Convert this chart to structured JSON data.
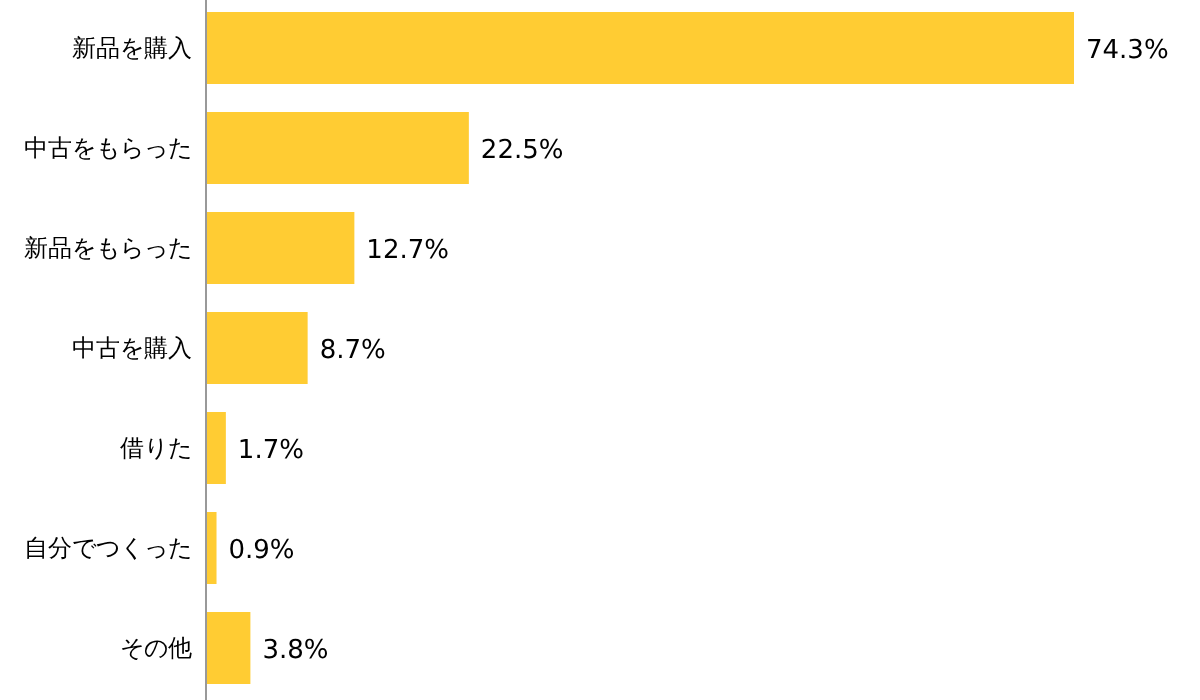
{
  "chart_data": {
    "type": "bar",
    "orientation": "horizontal",
    "categories": [
      "新品を購入",
      "中古をもらった",
      "新品をもらった",
      "中古を購入",
      "借りた",
      "自分でつくった",
      "その他"
    ],
    "values": [
      74.3,
      22.5,
      12.7,
      8.7,
      1.7,
      0.9,
      3.8
    ],
    "value_labels": [
      "74.3%",
      "22.5%",
      "12.7%",
      "8.7%",
      "1.7%",
      "0.9%",
      "3.8%"
    ],
    "color": "#ffcc33"
  }
}
